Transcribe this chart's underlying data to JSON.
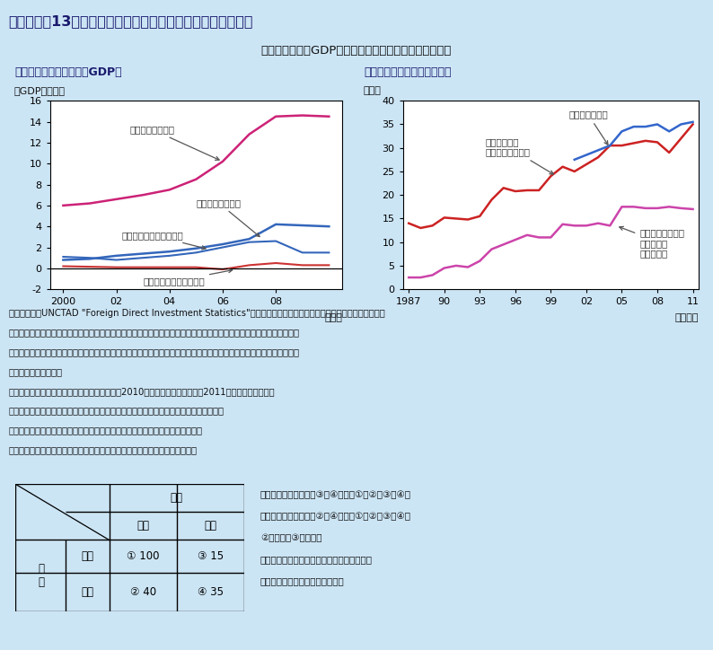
{
  "title": "第２－１－13図　対外・対内直接投資と海外生産比率の推移",
  "subtitle": "対外直接投資のGDP比はフロー、ストックとも上昇傾向",
  "bg_color": "#cce5f5",
  "header_bg": "#a0c8e8",
  "panel1_title": "（１）日本の直接投資のGDP比",
  "panel1_ylabel": "（GDP比、％）",
  "panel2_title": "（２）海外生産比率等の推移",
  "panel2_ylabel": "（％）",
  "chart1": {
    "years": [
      2000,
      2001,
      2002,
      2003,
      2004,
      2005,
      2006,
      2007,
      2008,
      2009,
      2010
    ],
    "outward_stock": [
      6.0,
      6.2,
      6.6,
      7.0,
      7.5,
      8.5,
      10.2,
      12.8,
      14.5,
      14.6,
      14.5
    ],
    "inward_stock": [
      0.8,
      0.9,
      1.2,
      1.4,
      1.6,
      1.9,
      2.3,
      2.8,
      4.2,
      4.1,
      4.0
    ],
    "outward_flow": [
      1.1,
      1.0,
      0.8,
      1.0,
      1.2,
      1.5,
      2.0,
      2.5,
      2.6,
      1.5,
      1.5
    ],
    "inward_flow": [
      0.2,
      0.15,
      0.1,
      0.1,
      0.1,
      0.1,
      -0.1,
      0.3,
      0.5,
      0.3,
      0.3
    ],
    "outward_stock_color": "#cc2277",
    "inward_stock_color": "#3366bb",
    "outward_flow_color": "#3366bb",
    "inward_flow_color": "#cc3333",
    "ylim": [
      -2,
      16
    ],
    "yticks": [
      -2,
      0,
      2,
      4,
      6,
      8,
      10,
      12,
      14,
      16
    ],
    "xticks": [
      2000,
      2002,
      2004,
      2006,
      2008
    ],
    "xlim": [
      1999.5,
      2010.5
    ]
  },
  "chart2": {
    "years_red": [
      1987,
      1988,
      1989,
      1990,
      1991,
      1992,
      1993,
      1994,
      1995,
      1996,
      1997,
      1998,
      1999,
      2000,
      2001,
      2002,
      2003,
      2004,
      2005,
      2006,
      2007,
      2008,
      2009,
      2010,
      2011
    ],
    "red_vals": [
      14.0,
      13.0,
      13.5,
      15.2,
      15.0,
      14.8,
      15.5,
      19.0,
      21.5,
      20.8,
      21.0,
      21.0,
      24.0,
      26.0,
      25.0,
      26.5,
      28.0,
      30.5,
      30.5,
      31.0,
      31.5,
      31.2,
      29.0,
      32.0,
      35.0
    ],
    "years_blue": [
      2001,
      2002,
      2003,
      2004,
      2005,
      2006,
      2007,
      2008,
      2009,
      2010,
      2011
    ],
    "blue_vals": [
      27.5,
      28.5,
      29.5,
      30.5,
      33.5,
      34.5,
      34.5,
      35.0,
      33.5,
      35.0,
      35.5
    ],
    "years_pink": [
      1987,
      1988,
      1989,
      1990,
      1991,
      1992,
      1993,
      1994,
      1995,
      1996,
      1997,
      1998,
      1999,
      2000,
      2001,
      2002,
      2003,
      2004,
      2005,
      2006,
      2007,
      2008,
      2009,
      2010,
      2011
    ],
    "pink_vals": [
      2.5,
      2.5,
      3.0,
      4.5,
      5.0,
      4.7,
      6.0,
      8.5,
      9.5,
      10.5,
      11.5,
      11.0,
      11.0,
      13.8,
      13.5,
      13.5,
      14.0,
      13.5,
      17.5,
      17.5,
      17.2,
      17.2,
      17.5,
      17.2,
      17.0
    ],
    "red_color": "#cc2222",
    "blue_color": "#3366cc",
    "pink_color": "#cc44aa",
    "ylim": [
      0,
      40
    ],
    "yticks": [
      0,
      5,
      10,
      15,
      20,
      25,
      30,
      35,
      40
    ],
    "xticks": [
      1987,
      1990,
      1993,
      1996,
      1999,
      2002,
      2005,
      2008,
      2011
    ],
    "xtick_labels": [
      "1987",
      "90",
      "93",
      "96",
      "99",
      "02",
      "05",
      "08",
      "11"
    ],
    "xlim": [
      1986.5,
      2011.5
    ]
  }
}
